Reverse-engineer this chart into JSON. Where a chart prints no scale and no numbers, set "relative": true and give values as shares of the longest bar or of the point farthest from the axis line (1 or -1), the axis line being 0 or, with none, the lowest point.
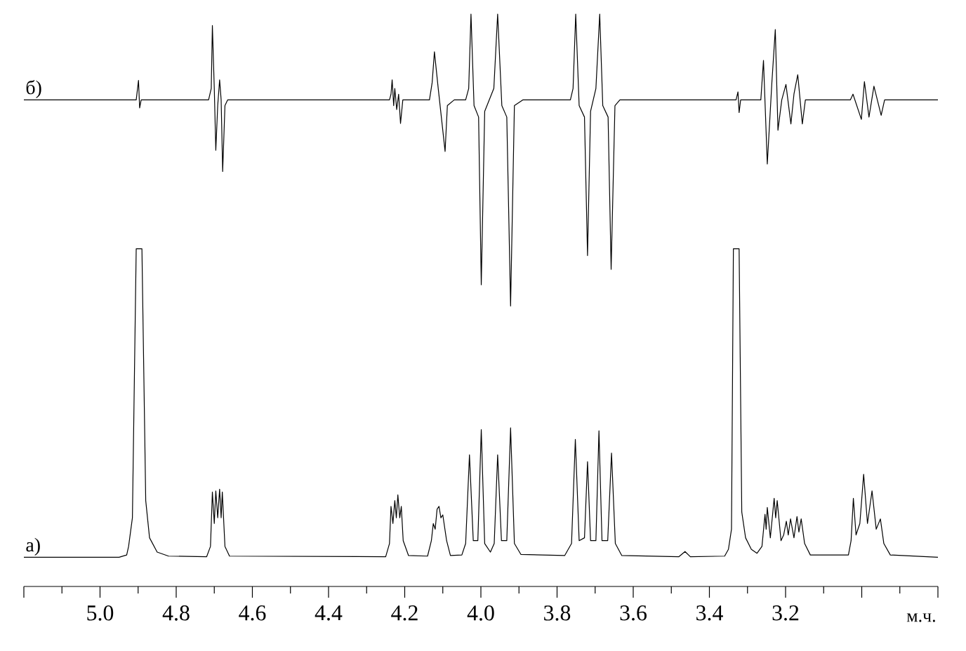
{
  "chart_data": {
    "type": "line",
    "relative": true,
    "xlabel": "м.ч.",
    "marker": "none",
    "line_style": "solid",
    "xlim": [
      5.2,
      2.8
    ],
    "xticks": [
      {
        "value": 5.2,
        "label": null
      },
      {
        "value": 5.0,
        "label": "5.0"
      },
      4.8,
      4.6,
      4.4,
      4.2,
      {
        "value": 4.0,
        "label": "4.0"
      },
      3.8,
      3.6,
      3.4,
      3.2,
      {
        "value": 3.0,
        "label": null
      },
      {
        "value": 2.8,
        "label": null
      }
    ],
    "series": [
      {
        "name": "а)",
        "color": "#000000",
        "x": [
          5.2,
          4.95,
          4.93,
          4.925,
          4.915,
          4.905,
          4.89,
          4.88,
          4.87,
          4.85,
          4.82,
          4.72,
          4.71,
          4.705,
          4.7,
          4.696,
          4.691,
          4.686,
          4.682,
          4.679,
          4.672,
          4.66,
          4.25,
          4.24,
          4.236,
          4.231,
          4.226,
          4.222,
          4.218,
          4.213,
          4.209,
          4.204,
          4.19,
          4.14,
          4.13,
          4.125,
          4.12,
          4.115,
          4.11,
          4.105,
          4.1,
          4.09,
          4.08,
          4.05,
          4.04,
          4.03,
          4.02,
          4.008,
          3.999,
          3.99,
          3.975,
          3.965,
          3.956,
          3.946,
          3.932,
          3.922,
          3.912,
          3.895,
          3.78,
          3.762,
          3.752,
          3.742,
          3.728,
          3.72,
          3.712,
          3.698,
          3.69,
          3.682,
          3.667,
          3.657,
          3.647,
          3.63,
          3.48,
          3.464,
          3.45,
          3.36,
          3.35,
          3.342,
          3.337,
          3.322,
          3.315,
          3.305,
          3.29,
          3.275,
          3.262,
          3.254,
          3.251,
          3.248,
          3.24,
          3.23,
          3.226,
          3.222,
          3.212,
          3.205,
          3.198,
          3.193,
          3.187,
          3.178,
          3.17,
          3.165,
          3.159,
          3.15,
          3.135,
          3.035,
          3.028,
          3.022,
          3.015,
          3.005,
          2.995,
          2.985,
          2.973,
          2.962,
          2.951,
          2.942,
          2.925,
          2.8
        ],
        "values": [
          0.051,
          0.051,
          0.055,
          0.07,
          0.12,
          0.59,
          0.59,
          0.15,
          0.085,
          0.06,
          0.053,
          0.052,
          0.07,
          0.165,
          0.11,
          0.167,
          0.12,
          0.17,
          0.12,
          0.165,
          0.07,
          0.053,
          0.052,
          0.075,
          0.14,
          0.11,
          0.15,
          0.12,
          0.16,
          0.12,
          0.14,
          0.08,
          0.054,
          0.053,
          0.08,
          0.11,
          0.1,
          0.135,
          0.14,
          0.12,
          0.125,
          0.08,
          0.054,
          0.055,
          0.075,
          0.23,
          0.08,
          0.08,
          0.274,
          0.075,
          0.06,
          0.075,
          0.23,
          0.08,
          0.08,
          0.277,
          0.075,
          0.056,
          0.054,
          0.075,
          0.257,
          0.08,
          0.085,
          0.218,
          0.08,
          0.08,
          0.272,
          0.08,
          0.08,
          0.233,
          0.075,
          0.054,
          0.052,
          0.061,
          0.052,
          0.053,
          0.065,
          0.1,
          0.59,
          0.59,
          0.13,
          0.085,
          0.065,
          0.058,
          0.07,
          0.126,
          0.1,
          0.138,
          0.085,
          0.154,
          0.12,
          0.15,
          0.08,
          0.09,
          0.114,
          0.09,
          0.118,
          0.085,
          0.122,
          0.095,
          0.118,
          0.075,
          0.055,
          0.055,
          0.08,
          0.154,
          0.09,
          0.11,
          0.196,
          0.11,
          0.167,
          0.1,
          0.118,
          0.075,
          0.055,
          0.051
        ]
      },
      {
        "name": "б)",
        "color": "#000000",
        "x": [
          5.2,
          4.905,
          4.899,
          4.896,
          4.892,
          4.715,
          4.708,
          4.705,
          4.7,
          4.696,
          4.691,
          4.686,
          4.682,
          4.678,
          4.672,
          4.665,
          4.24,
          4.236,
          4.233,
          4.229,
          4.226,
          4.221,
          4.216,
          4.211,
          4.205,
          4.135,
          4.128,
          4.122,
          4.112,
          4.094,
          4.088,
          4.07,
          4.04,
          4.032,
          4.026,
          4.018,
          4.006,
          3.999,
          3.99,
          3.966,
          3.956,
          3.945,
          3.932,
          3.922,
          3.912,
          3.89,
          3.765,
          3.758,
          3.751,
          3.742,
          3.728,
          3.72,
          3.712,
          3.698,
          3.688,
          3.68,
          3.666,
          3.658,
          3.648,
          3.635,
          3.33,
          3.325,
          3.322,
          3.318,
          3.265,
          3.258,
          3.248,
          3.236,
          3.227,
          3.22,
          3.21,
          3.199,
          3.186,
          3.178,
          3.168,
          3.156,
          3.148,
          3.03,
          3.023,
          3.001,
          2.993,
          2.981,
          2.968,
          2.949,
          2.94,
          2.8
        ],
        "values": [
          0.85,
          0.85,
          0.884,
          0.836,
          0.85,
          0.85,
          0.87,
          0.98,
          0.87,
          0.762,
          0.84,
          0.885,
          0.85,
          0.725,
          0.84,
          0.85,
          0.85,
          0.86,
          0.885,
          0.84,
          0.87,
          0.833,
          0.86,
          0.809,
          0.85,
          0.85,
          0.88,
          0.934,
          0.87,
          0.76,
          0.84,
          0.85,
          0.85,
          0.87,
          1.0,
          0.84,
          0.82,
          0.527,
          0.83,
          0.87,
          1.0,
          0.84,
          0.82,
          0.49,
          0.84,
          0.85,
          0.85,
          0.87,
          1.0,
          0.84,
          0.82,
          0.578,
          0.83,
          0.87,
          1.0,
          0.84,
          0.82,
          0.554,
          0.84,
          0.85,
          0.85,
          0.864,
          0.828,
          0.85,
          0.85,
          0.919,
          0.738,
          0.88,
          0.973,
          0.797,
          0.85,
          0.877,
          0.808,
          0.86,
          0.894,
          0.808,
          0.85,
          0.85,
          0.86,
          0.816,
          0.882,
          0.82,
          0.874,
          0.823,
          0.85,
          0.85
        ]
      }
    ]
  }
}
